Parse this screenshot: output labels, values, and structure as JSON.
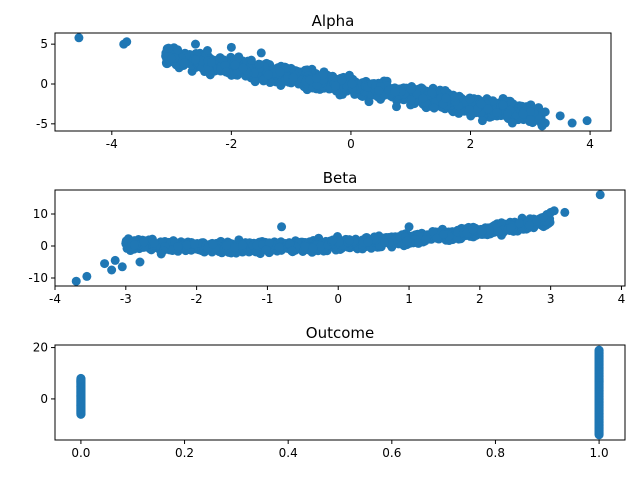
{
  "chart_data": [
    {
      "type": "scatter",
      "title": "Alpha",
      "xlabel": "",
      "ylabel": "",
      "xlim": [
        -4.95,
        4.35
      ],
      "ylim": [
        -5.9,
        6.4
      ],
      "x_ticks": [
        -4,
        -2,
        0,
        2,
        4
      ],
      "y_ticks": [
        -5,
        0,
        5
      ],
      "grid": false,
      "color": "#1f77b4",
      "trend": {
        "slope": -1.2,
        "intercept": -0.2,
        "spread": 0.9,
        "x_range": [
          -3.1,
          3.2
        ]
      },
      "points": [
        {
          "x": -4.55,
          "y": 5.8
        },
        {
          "x": -3.8,
          "y": 5.0
        },
        {
          "x": -3.75,
          "y": 5.3
        },
        {
          "x": -3.05,
          "y": 4.5
        },
        {
          "x": -3.0,
          "y": 3.2
        },
        {
          "x": -2.9,
          "y": 4.3
        },
        {
          "x": -2.6,
          "y": 5.0
        },
        {
          "x": -2.4,
          "y": 4.2
        },
        {
          "x": -2.0,
          "y": 4.6
        },
        {
          "x": -1.5,
          "y": 3.9
        },
        {
          "x": 2.2,
          "y": -4.6
        },
        {
          "x": 2.7,
          "y": -4.9
        },
        {
          "x": 3.0,
          "y": -4.5
        },
        {
          "x": 3.25,
          "y": -3.5
        },
        {
          "x": 3.25,
          "y": -4.9
        },
        {
          "x": 3.5,
          "y": -4.0
        },
        {
          "x": 3.7,
          "y": -4.9
        },
        {
          "x": 3.95,
          "y": -4.6
        }
      ]
    },
    {
      "type": "scatter",
      "title": "Beta",
      "xlabel": "",
      "ylabel": "",
      "xlim": [
        -4.0,
        4.05
      ],
      "ylim": [
        -12.5,
        17.5
      ],
      "x_ticks": [
        -4,
        -3,
        -2,
        -1,
        0,
        1,
        2,
        3,
        4
      ],
      "y_ticks": [
        -10,
        0,
        10
      ],
      "grid": false,
      "color": "#1f77b4",
      "trend": {
        "kind": "quadratic",
        "a": 0.45,
        "b": 1.2,
        "c": 0.5,
        "spread": 1.3,
        "x_range": [
          -3.0,
          3.0
        ]
      },
      "points": [
        {
          "x": -3.7,
          "y": -11.0
        },
        {
          "x": -3.55,
          "y": -9.5
        },
        {
          "x": -3.3,
          "y": -5.5
        },
        {
          "x": -3.2,
          "y": -7.5
        },
        {
          "x": -3.15,
          "y": -4.5
        },
        {
          "x": -3.05,
          "y": -6.5
        },
        {
          "x": -2.8,
          "y": -5.0
        },
        {
          "x": -2.5,
          "y": -2.5
        },
        {
          "x": -0.8,
          "y": 6.0
        },
        {
          "x": 1.0,
          "y": 6.0
        },
        {
          "x": 2.7,
          "y": 6.5
        },
        {
          "x": 2.9,
          "y": 9.0
        },
        {
          "x": 3.0,
          "y": 10.5
        },
        {
          "x": 3.05,
          "y": 11.0
        },
        {
          "x": 3.2,
          "y": 10.5
        },
        {
          "x": 3.7,
          "y": 16.0
        }
      ]
    },
    {
      "type": "scatter",
      "title": "Outcome",
      "xlabel": "",
      "ylabel": "",
      "xlim": [
        -0.05,
        1.05
      ],
      "ylim": [
        -16,
        21
      ],
      "x_ticks": [
        0.0,
        0.2,
        0.4,
        0.6,
        0.8,
        1.0
      ],
      "y_ticks": [
        0,
        20
      ],
      "grid": false,
      "color": "#1f77b4",
      "columns": [
        {
          "x": 0.0,
          "min": -6.0,
          "max": 8.0
        },
        {
          "x": 1.0,
          "min": -14.0,
          "max": 19.0
        }
      ]
    }
  ]
}
